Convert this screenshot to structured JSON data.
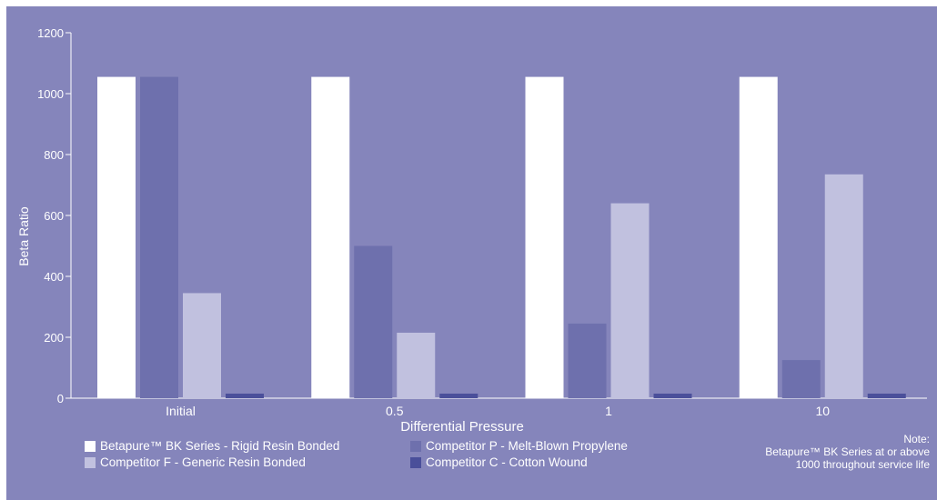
{
  "chart_data": {
    "type": "bar",
    "xlabel": "Differential Pressure",
    "ylabel": "Beta Ratio",
    "ylim": [
      0,
      1200
    ],
    "yticks": [
      0,
      200,
      400,
      600,
      800,
      1000,
      1200
    ],
    "categories": [
      "Initial",
      "0.5",
      "1",
      "10"
    ],
    "series": [
      {
        "name": "Betapure™ BK Series - Rigid Resin Bonded",
        "color": "#ffffff",
        "values": [
          1055,
          1055,
          1055,
          1055
        ]
      },
      {
        "name": "Competitor P - Melt-Blown Propylene",
        "color": "#6e70ad",
        "values": [
          1055,
          500,
          245,
          125
        ]
      },
      {
        "name": "Competitor F - Generic Resin Bonded",
        "color": "#c1c1df",
        "values": [
          345,
          215,
          640,
          735
        ]
      },
      {
        "name": "Competitor C - Cotton Wound",
        "color": "#4a4f9a",
        "values": [
          15,
          15,
          15,
          15
        ]
      }
    ],
    "grid": false,
    "legend_position": "bottom",
    "note": [
      "Note:",
      "Betapure™ BK Series at or above",
      "1000 throughout service life"
    ]
  },
  "colors": {
    "background": "#8585bb",
    "axis": "#ffffff"
  }
}
